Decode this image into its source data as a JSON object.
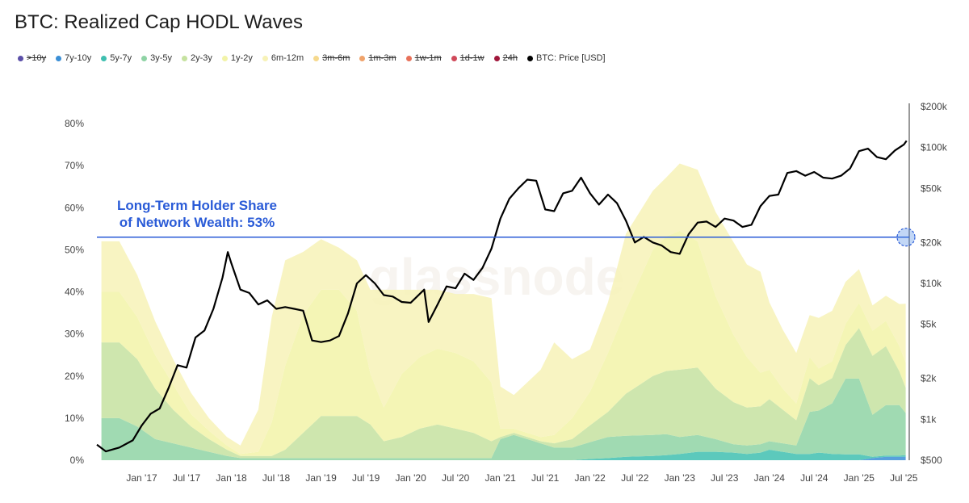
{
  "title": "BTC: Realized Cap HODL Waves",
  "watermark": "glassnode",
  "legend": [
    {
      "label": ">10y",
      "color": "#5b4fa8",
      "visible": false
    },
    {
      "label": "7y-10y",
      "color": "#3b8fd6",
      "visible": true
    },
    {
      "label": "5y-7y",
      "color": "#3fbfb0",
      "visible": true
    },
    {
      "label": "3y-5y",
      "color": "#8fd3a5",
      "visible": true
    },
    {
      "label": "2y-3y",
      "color": "#c6e2a0",
      "visible": true
    },
    {
      "label": "1y-2y",
      "color": "#f2f3a8",
      "visible": true
    },
    {
      "label": "6m-12m",
      "color": "#f7f2b7",
      "visible": true
    },
    {
      "label": "3m-6m",
      "color": "#f6d98d",
      "visible": false
    },
    {
      "label": "1m-3m",
      "color": "#f0a36b",
      "visible": false
    },
    {
      "label": "1w-1m",
      "color": "#e8715a",
      "visible": false
    },
    {
      "label": "1d-1w",
      "color": "#d04a5a",
      "visible": false
    },
    {
      "label": "24h",
      "color": "#a0173b",
      "visible": false
    },
    {
      "label": "BTC: Price [USD]",
      "color": "#000000",
      "visible": true
    }
  ],
  "annotation": {
    "line1": "Long-Term Holder Share",
    "line2": "of Network Wealth: 53%",
    "value": 53,
    "color": "#2a5bd7"
  },
  "chart_data": {
    "type": "area",
    "x_labels": [
      "Jan '17",
      "Jul '17",
      "Jan '18",
      "Jul '18",
      "Jan '19",
      "Jul '19",
      "Jan '20",
      "Jul '20",
      "Jan '21",
      "Jul '21",
      "Jan '22",
      "Jul '22",
      "Jan '23",
      "Jul '23",
      "Jan '24",
      "Jul '24",
      "Jan '25",
      "Jul '25"
    ],
    "x_range": [
      2016.5,
      2025.56
    ],
    "y_left": {
      "ticks": [
        "0%",
        "10%",
        "20%",
        "30%",
        "40%",
        "50%",
        "60%",
        "70%",
        "80%"
      ],
      "range": [
        0,
        80
      ]
    },
    "y_right": {
      "ticks": [
        "$500",
        "$1k",
        "$2k",
        "$5k",
        "$10k",
        "$20k",
        "$50k",
        "$100k",
        "$200k"
      ],
      "values": [
        500,
        1000,
        2000,
        5000,
        10000,
        20000,
        50000,
        100000,
        200000
      ],
      "scale": "log"
    },
    "x": [
      2016.55,
      2016.75,
      2016.95,
      2017.15,
      2017.35,
      2017.55,
      2017.75,
      2017.95,
      2018.1,
      2018.3,
      2018.45,
      2018.6,
      2018.8,
      2019.0,
      2019.2,
      2019.4,
      2019.55,
      2019.7,
      2019.9,
      2020.1,
      2020.3,
      2020.5,
      2020.7,
      2020.9,
      2021.0,
      2021.15,
      2021.3,
      2021.45,
      2021.6,
      2021.8,
      2022.0,
      2022.2,
      2022.4,
      2022.55,
      2022.7,
      2022.85,
      2023.0,
      2023.2,
      2023.4,
      2023.6,
      2023.75,
      2023.9,
      2024.0,
      2024.15,
      2024.3,
      2024.45,
      2024.55,
      2024.7,
      2024.85,
      2025.0,
      2025.15,
      2025.3,
      2025.45,
      2025.52
    ],
    "series": [
      {
        "name": "7y-10y",
        "color": "#3b8fd6",
        "values": [
          0,
          0,
          0,
          0,
          0,
          0,
          0,
          0,
          0,
          0,
          0,
          0,
          0,
          0,
          0,
          0,
          0,
          0,
          0,
          0,
          0,
          0,
          0,
          0,
          0,
          0,
          0,
          0,
          0,
          0,
          0,
          0,
          0,
          0,
          0,
          0,
          0,
          0,
          0,
          0,
          0,
          0,
          0,
          0,
          0,
          0,
          0,
          0,
          0,
          0,
          0.5,
          0.8,
          0.8,
          0.8
        ]
      },
      {
        "name": "5y-7y",
        "color": "#3fbfb0",
        "values": [
          0,
          0,
          0,
          0,
          0,
          0,
          0,
          0,
          0,
          0,
          0,
          0,
          0,
          0,
          0,
          0,
          0,
          0,
          0,
          0,
          0,
          0,
          0,
          0,
          0,
          0,
          0,
          0,
          0,
          0,
          0.3,
          0.5,
          0.8,
          0.9,
          1,
          1.2,
          1.5,
          2,
          2,
          1.8,
          1.5,
          1.8,
          2.5,
          2,
          1.5,
          1.5,
          1.8,
          1.5,
          1.4,
          1.4,
          0.3,
          0.3,
          0.3,
          0.4
        ]
      },
      {
        "name": "3y-5y",
        "color": "#8fd3a5",
        "values": [
          10,
          10,
          8,
          5,
          4,
          3,
          2,
          1,
          0.5,
          0.5,
          0.5,
          0.5,
          0.5,
          0.5,
          0.5,
          0.5,
          0.5,
          0.5,
          0.5,
          0.5,
          0.5,
          0.5,
          0.5,
          0.5,
          5,
          6,
          5,
          4,
          3,
          3,
          4,
          5,
          5,
          5,
          5,
          5,
          4,
          4,
          3,
          2,
          2,
          2,
          2,
          2,
          2,
          10,
          10,
          12,
          18,
          18,
          10,
          12,
          12,
          10
        ]
      },
      {
        "name": "2y-3y",
        "color": "#c6e2a0",
        "values": [
          18,
          18,
          16,
          12,
          8,
          5,
          3,
          1.5,
          0.5,
          0.5,
          0.5,
          2,
          6,
          10,
          10,
          10,
          8,
          4,
          5,
          7,
          8,
          7,
          6,
          4,
          0.5,
          0.5,
          0.5,
          0.5,
          1,
          2,
          4,
          6,
          10,
          12,
          14,
          15,
          16,
          16,
          12,
          10,
          9,
          9,
          10,
          8,
          6,
          8,
          6,
          6,
          8,
          12,
          14,
          14,
          8,
          6
        ]
      },
      {
        "name": "1y-2y",
        "color": "#f2f3a8",
        "values": [
          12,
          12,
          10,
          8,
          6,
          3,
          2,
          1,
          0.5,
          1,
          8,
          20,
          28,
          30,
          30,
          25,
          12,
          8,
          15,
          17,
          18,
          18,
          17,
          14,
          2,
          1,
          1,
          1,
          2,
          5,
          8,
          14,
          20,
          25,
          30,
          32,
          33,
          30,
          22,
          16,
          12,
          8,
          7,
          5,
          4,
          5,
          4,
          4,
          5,
          6,
          6,
          6,
          6,
          6
        ]
      },
      {
        "name": "6m-12m",
        "color": "#f7f2b7",
        "values": [
          12,
          12,
          10,
          8,
          6,
          5,
          3,
          2,
          2,
          10,
          25,
          25,
          15,
          12,
          10,
          12,
          20,
          28,
          20,
          16,
          14,
          14,
          16,
          20,
          10,
          8,
          12,
          16,
          22,
          14,
          10,
          12,
          18,
          16,
          14,
          14,
          16,
          17,
          20,
          22,
          22,
          24,
          16,
          14,
          12,
          10,
          12,
          12,
          10,
          8,
          6,
          6,
          10,
          14
        ]
      }
    ],
    "price_series": {
      "name": "BTC: Price [USD]",
      "color": "#000000",
      "x": [
        2016.5,
        2016.6,
        2016.75,
        2016.9,
        2017.0,
        2017.1,
        2017.2,
        2017.3,
        2017.4,
        2017.5,
        2017.6,
        2017.7,
        2017.8,
        2017.9,
        2017.96,
        2018.0,
        2018.1,
        2018.2,
        2018.3,
        2018.4,
        2018.5,
        2018.6,
        2018.7,
        2018.8,
        2018.9,
        2019.0,
        2019.1,
        2019.2,
        2019.3,
        2019.4,
        2019.5,
        2019.6,
        2019.7,
        2019.8,
        2019.9,
        2020.0,
        2020.15,
        2020.2,
        2020.3,
        2020.4,
        2020.5,
        2020.6,
        2020.7,
        2020.8,
        2020.9,
        2021.0,
        2021.1,
        2021.2,
        2021.3,
        2021.4,
        2021.5,
        2021.6,
        2021.7,
        2021.8,
        2021.9,
        2022.0,
        2022.1,
        2022.2,
        2022.3,
        2022.4,
        2022.5,
        2022.6,
        2022.7,
        2022.8,
        2022.9,
        2023.0,
        2023.1,
        2023.2,
        2023.3,
        2023.4,
        2023.5,
        2023.6,
        2023.7,
        2023.8,
        2023.9,
        2024.0,
        2024.1,
        2024.2,
        2024.3,
        2024.4,
        2024.5,
        2024.6,
        2024.7,
        2024.8,
        2024.9,
        2025.0,
        2025.1,
        2025.2,
        2025.3,
        2025.4,
        2025.5,
        2025.53
      ],
      "values": [
        650,
        580,
        620,
        700,
        900,
        1100,
        1200,
        1700,
        2500,
        2400,
        4000,
        4500,
        6500,
        11000,
        17000,
        14000,
        9000,
        8500,
        7000,
        7500,
        6500,
        6700,
        6500,
        6300,
        3800,
        3700,
        3800,
        4100,
        6000,
        10000,
        11500,
        10000,
        8200,
        8000,
        7300,
        7200,
        9000,
        5200,
        7000,
        9500,
        9200,
        11800,
        10600,
        13000,
        18000,
        30000,
        42000,
        50000,
        58000,
        57000,
        35000,
        34000,
        46000,
        48000,
        60000,
        46000,
        38000,
        45000,
        39000,
        29000,
        20000,
        22000,
        20000,
        19000,
        17000,
        16500,
        23000,
        28000,
        28500,
        26000,
        30000,
        29000,
        26000,
        27000,
        37000,
        44000,
        45000,
        65000,
        67000,
        62000,
        66000,
        60000,
        59000,
        62000,
        70000,
        94000,
        98000,
        85000,
        82000,
        95000,
        105000,
        112000
      ]
    }
  }
}
